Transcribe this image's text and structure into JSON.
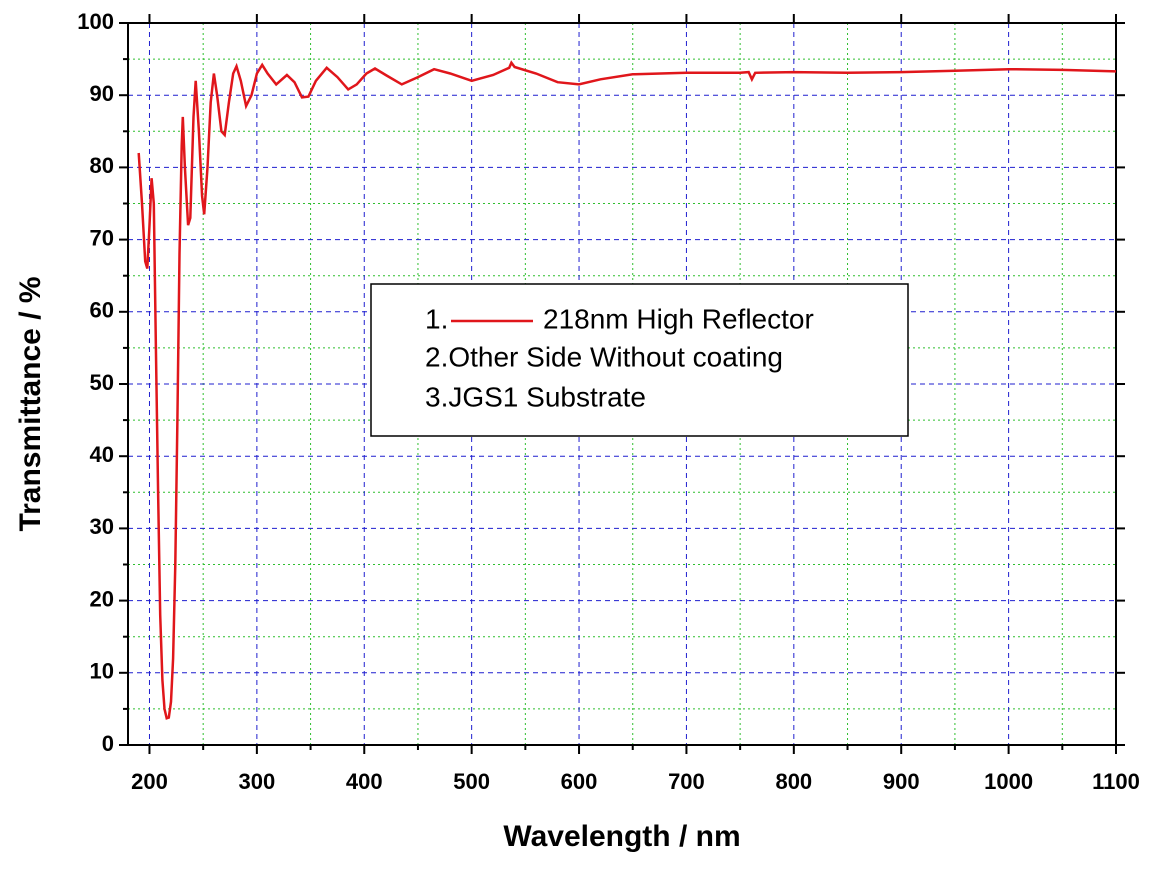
{
  "chart_data": {
    "type": "line",
    "x_label": "Wavelength / nm",
    "y_label": "Transmittance / %",
    "xlim": [
      180,
      1100
    ],
    "ylim": [
      0,
      100
    ],
    "xticks": [
      200,
      300,
      400,
      500,
      600,
      700,
      800,
      900,
      1000,
      1100
    ],
    "yticks": [
      0,
      10,
      20,
      30,
      40,
      50,
      60,
      70,
      80,
      90,
      100
    ],
    "xminor": [
      250,
      350,
      450,
      550,
      650,
      750,
      850,
      950,
      1050
    ],
    "yminor": [
      5,
      15,
      25,
      35,
      45,
      55,
      65,
      75,
      85,
      95
    ],
    "grid": true,
    "major_grid_color": "#1f1fcf",
    "minor_grid_color": "#2fbf2f",
    "legend_prefix": "1.",
    "legend_lines": [
      "2.Other Side Without coating",
      "3.JGS1 Substrate"
    ],
    "x": [
      190,
      193,
      196,
      198,
      200,
      202,
      204,
      206,
      208,
      210,
      212,
      214,
      216,
      218,
      220,
      222,
      224,
      226,
      228,
      230,
      231,
      233,
      236,
      238,
      241,
      243,
      246,
      249,
      251,
      254,
      257,
      260,
      263,
      267,
      270,
      274,
      278,
      281,
      285,
      290,
      295,
      300,
      305,
      310,
      318,
      328,
      335,
      342,
      348,
      355,
      365,
      375,
      385,
      393,
      402,
      410,
      420,
      435,
      450,
      465,
      480,
      500,
      520,
      535,
      537,
      540,
      560,
      580,
      600,
      620,
      650,
      700,
      750,
      758,
      761,
      764,
      800,
      850,
      900,
      950,
      1000,
      1050,
      1100
    ],
    "series": [
      {
        "name": "218nm High Reflector",
        "color": "#e0161b",
        "values": [
          82,
          75,
          67,
          66,
          72,
          78.5,
          75,
          55,
          35,
          18,
          9,
          5,
          3.7,
          3.8,
          6,
          12,
          25,
          45,
          68,
          83,
          87,
          80,
          72,
          73,
          87,
          92,
          85,
          76,
          73.5,
          80,
          89,
          93,
          90,
          85,
          84.5,
          89,
          93,
          94,
          92,
          88.5,
          90,
          93,
          94.2,
          93,
          91.5,
          92.8,
          91.8,
          89.7,
          89.8,
          92,
          93.8,
          92.5,
          90.8,
          91.5,
          93,
          93.7,
          92.8,
          91.5,
          92.5,
          93.6,
          93,
          92,
          92.8,
          93.8,
          94.5,
          93.9,
          93,
          91.8,
          91.5,
          92.2,
          92.9,
          93.1,
          93.1,
          93.2,
          92.2,
          93.1,
          93.2,
          93.1,
          93.2,
          93.4,
          93.6,
          93.5,
          93.3
        ]
      }
    ]
  }
}
